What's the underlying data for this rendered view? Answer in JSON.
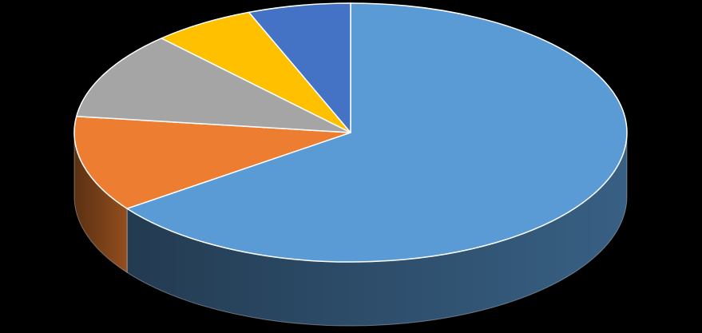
{
  "background": "#000000",
  "chart_data": {
    "type": "pie",
    "style": "3d",
    "title": "",
    "legend": "none",
    "data_labels": false,
    "start_angle_deg": 0,
    "direction": "clockwise",
    "slices": [
      {
        "value": 65,
        "color": "#5B9BD5"
      },
      {
        "value": 12,
        "color": "#ED7D31"
      },
      {
        "value": 11,
        "color": "#A5A5A5"
      },
      {
        "value": 6,
        "color": "#FFC000"
      },
      {
        "value": 6,
        "color": "#4472C4"
      }
    ]
  }
}
